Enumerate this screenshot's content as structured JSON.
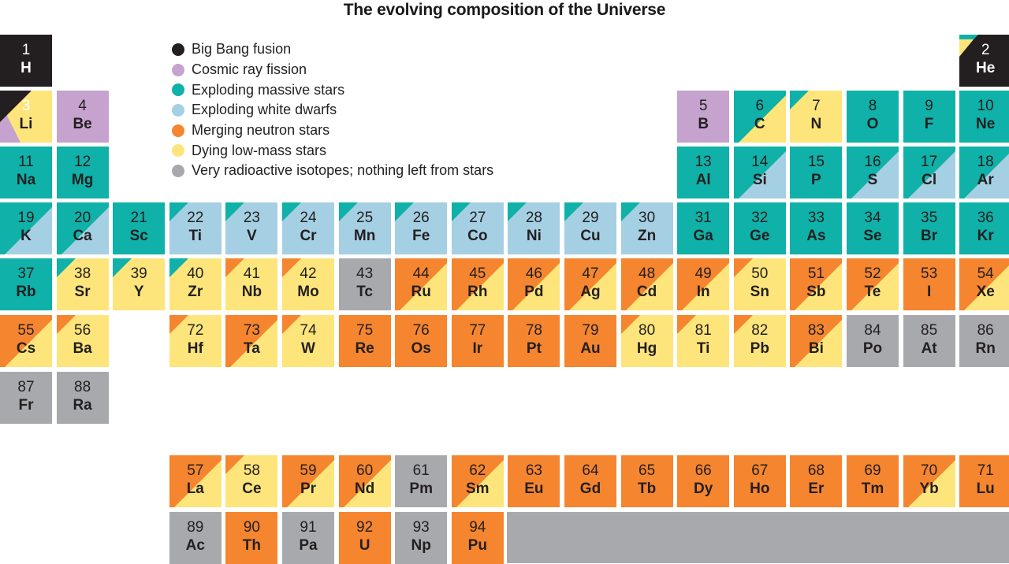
{
  "title": "The evolving composition of the Universe",
  "colors": {
    "bb": "#231f20",
    "cr": "#c5a3ce",
    "ems": "#0fb1a8",
    "ewd": "#a5cfe3",
    "mns": "#f5852f",
    "dlm": "#fde57b",
    "vri": "#a7a9ac"
  },
  "legend": [
    {
      "key": "bb",
      "label": "Big Bang fusion"
    },
    {
      "key": "cr",
      "label": "Cosmic ray fission"
    },
    {
      "key": "ems",
      "label": "Exploding massive stars"
    },
    {
      "key": "ewd",
      "label": "Exploding white dwarfs"
    },
    {
      "key": "mns",
      "label": "Merging neutron stars"
    },
    {
      "key": "dlm",
      "label": "Dying low-mass stars"
    },
    {
      "key": "vri",
      "label": "Very  radioactive isotopes; nothing left from stars"
    }
  ],
  "elements": [
    {
      "n": "1",
      "s": "H",
      "row": 1,
      "col": 1,
      "fill": "bb"
    },
    {
      "n": "2",
      "s": "He",
      "row": 1,
      "col": 18,
      "fill": "bb",
      "corner": "ems",
      "corner2": "dlm"
    },
    {
      "n": "3",
      "s": "Li",
      "row": 2,
      "col": 1,
      "fill": "dlm",
      "corner": "bb",
      "bl": "cr"
    },
    {
      "n": "4",
      "s": "Be",
      "row": 2,
      "col": 2,
      "fill": "cr"
    },
    {
      "n": "5",
      "s": "B",
      "row": 2,
      "col": 13,
      "fill": "cr"
    },
    {
      "n": "6",
      "s": "C",
      "row": 2,
      "col": 14,
      "fill": "ems",
      "br": "dlm"
    },
    {
      "n": "7",
      "s": "N",
      "row": 2,
      "col": 15,
      "fill": "dlm",
      "corner": "ems"
    },
    {
      "n": "8",
      "s": "O",
      "row": 2,
      "col": 16,
      "fill": "ems"
    },
    {
      "n": "9",
      "s": "F",
      "row": 2,
      "col": 17,
      "fill": "ems"
    },
    {
      "n": "10",
      "s": "Ne",
      "row": 2,
      "col": 18,
      "fill": "ems"
    },
    {
      "n": "11",
      "s": "Na",
      "row": 3,
      "col": 1,
      "fill": "ems"
    },
    {
      "n": "12",
      "s": "Mg",
      "row": 3,
      "col": 2,
      "fill": "ems"
    },
    {
      "n": "13",
      "s": "Al",
      "row": 3,
      "col": 13,
      "fill": "ems"
    },
    {
      "n": "14",
      "s": "Si",
      "row": 3,
      "col": 14,
      "fill": "ems",
      "br": "ewd"
    },
    {
      "n": "15",
      "s": "P",
      "row": 3,
      "col": 15,
      "fill": "ems"
    },
    {
      "n": "16",
      "s": "S",
      "row": 3,
      "col": 16,
      "fill": "ems",
      "br": "ewd"
    },
    {
      "n": "17",
      "s": "Cl",
      "row": 3,
      "col": 17,
      "fill": "ems",
      "br": "ewd"
    },
    {
      "n": "18",
      "s": "Ar",
      "row": 3,
      "col": 18,
      "fill": "ems",
      "br": "ewd"
    },
    {
      "n": "19",
      "s": "K",
      "row": 4,
      "col": 1,
      "fill": "ems",
      "br": "ewd"
    },
    {
      "n": "20",
      "s": "Ca",
      "row": 4,
      "col": 2,
      "fill": "ems",
      "br": "ewd"
    },
    {
      "n": "21",
      "s": "Sc",
      "row": 4,
      "col": 3,
      "fill": "ems"
    },
    {
      "n": "22",
      "s": "Ti",
      "row": 4,
      "col": 4,
      "fill": "ewd",
      "corner": "ems"
    },
    {
      "n": "23",
      "s": "V",
      "row": 4,
      "col": 5,
      "fill": "ewd",
      "corner": "ems"
    },
    {
      "n": "24",
      "s": "Cr",
      "row": 4,
      "col": 6,
      "fill": "ewd",
      "corner": "ems"
    },
    {
      "n": "25",
      "s": "Mn",
      "row": 4,
      "col": 7,
      "fill": "ewd",
      "corner": "ems"
    },
    {
      "n": "26",
      "s": "Fe",
      "row": 4,
      "col": 8,
      "fill": "ewd",
      "corner": "ems"
    },
    {
      "n": "27",
      "s": "Co",
      "row": 4,
      "col": 9,
      "fill": "ewd",
      "corner": "ems"
    },
    {
      "n": "28",
      "s": "Ni",
      "row": 4,
      "col": 10,
      "fill": "ewd",
      "corner": "ems"
    },
    {
      "n": "29",
      "s": "Cu",
      "row": 4,
      "col": 11,
      "fill": "ewd",
      "corner": "ems"
    },
    {
      "n": "30",
      "s": "Zn",
      "row": 4,
      "col": 12,
      "fill": "ewd",
      "corner": "ems"
    },
    {
      "n": "31",
      "s": "Ga",
      "row": 4,
      "col": 13,
      "fill": "ems"
    },
    {
      "n": "32",
      "s": "Ge",
      "row": 4,
      "col": 14,
      "fill": "ems"
    },
    {
      "n": "33",
      "s": "As",
      "row": 4,
      "col": 15,
      "fill": "ems"
    },
    {
      "n": "34",
      "s": "Se",
      "row": 4,
      "col": 16,
      "fill": "ems"
    },
    {
      "n": "35",
      "s": "Br",
      "row": 4,
      "col": 17,
      "fill": "ems"
    },
    {
      "n": "36",
      "s": "Kr",
      "row": 4,
      "col": 18,
      "fill": "ems"
    },
    {
      "n": "37",
      "s": "Rb",
      "row": 5,
      "col": 1,
      "fill": "ems"
    },
    {
      "n": "38",
      "s": "Sr",
      "row": 5,
      "col": 2,
      "fill": "dlm",
      "corner": "ems"
    },
    {
      "n": "39",
      "s": "Y",
      "row": 5,
      "col": 3,
      "fill": "dlm",
      "corner": "ems"
    },
    {
      "n": "40",
      "s": "Zr",
      "row": 5,
      "col": 4,
      "fill": "dlm",
      "corner": "ems"
    },
    {
      "n": "41",
      "s": "Nb",
      "row": 5,
      "col": 5,
      "fill": "dlm",
      "corner": "mns"
    },
    {
      "n": "42",
      "s": "Mo",
      "row": 5,
      "col": 6,
      "fill": "dlm",
      "corner": "mns"
    },
    {
      "n": "43",
      "s": "Tc",
      "row": 5,
      "col": 7,
      "fill": "vri"
    },
    {
      "n": "44",
      "s": "Ru",
      "row": 5,
      "col": 8,
      "fill": "mns",
      "br": "dlm"
    },
    {
      "n": "45",
      "s": "Rh",
      "row": 5,
      "col": 9,
      "fill": "mns",
      "br": "dlm"
    },
    {
      "n": "46",
      "s": "Pd",
      "row": 5,
      "col": 10,
      "fill": "mns",
      "br": "dlm"
    },
    {
      "n": "47",
      "s": "Ag",
      "row": 5,
      "col": 11,
      "fill": "mns",
      "br": "dlm"
    },
    {
      "n": "48",
      "s": "Cd",
      "row": 5,
      "col": 12,
      "fill": "mns",
      "br": "dlm"
    },
    {
      "n": "49",
      "s": "In",
      "row": 5,
      "col": 13,
      "fill": "mns",
      "br": "dlm"
    },
    {
      "n": "50",
      "s": "Sn",
      "row": 5,
      "col": 14,
      "fill": "dlm",
      "corner": "mns"
    },
    {
      "n": "51",
      "s": "Sb",
      "row": 5,
      "col": 15,
      "fill": "mns",
      "br": "dlm"
    },
    {
      "n": "52",
      "s": "Te",
      "row": 5,
      "col": 16,
      "fill": "mns",
      "br": "dlm"
    },
    {
      "n": "53",
      "s": "I",
      "row": 5,
      "col": 17,
      "fill": "mns"
    },
    {
      "n": "54",
      "s": "Xe",
      "row": 5,
      "col": 18,
      "fill": "mns",
      "br": "dlm"
    },
    {
      "n": "55",
      "s": "Cs",
      "row": 6,
      "col": 1,
      "fill": "mns",
      "br": "dlm"
    },
    {
      "n": "56",
      "s": "Ba",
      "row": 6,
      "col": 2,
      "fill": "dlm",
      "corner": "mns"
    },
    {
      "n": "72",
      "s": "Hf",
      "row": 6,
      "col": 4,
      "fill": "dlm",
      "corner": "mns"
    },
    {
      "n": "73",
      "s": "Ta",
      "row": 6,
      "col": 5,
      "fill": "mns",
      "br": "dlm"
    },
    {
      "n": "74",
      "s": "W",
      "row": 6,
      "col": 6,
      "fill": "dlm",
      "corner": "mns"
    },
    {
      "n": "75",
      "s": "Re",
      "row": 6,
      "col": 7,
      "fill": "mns"
    },
    {
      "n": "76",
      "s": "Os",
      "row": 6,
      "col": 8,
      "fill": "mns"
    },
    {
      "n": "77",
      "s": "Ir",
      "row": 6,
      "col": 9,
      "fill": "mns"
    },
    {
      "n": "78",
      "s": "Pt",
      "row": 6,
      "col": 10,
      "fill": "mns"
    },
    {
      "n": "79",
      "s": "Au",
      "row": 6,
      "col": 11,
      "fill": "mns"
    },
    {
      "n": "80",
      "s": "Hg",
      "row": 6,
      "col": 12,
      "fill": "dlm",
      "corner": "mns"
    },
    {
      "n": "81",
      "s": "Ti",
      "row": 6,
      "col": 13,
      "fill": "dlm",
      "corner": "mns"
    },
    {
      "n": "82",
      "s": "Pb",
      "row": 6,
      "col": 14,
      "fill": "dlm",
      "corner": "mns"
    },
    {
      "n": "83",
      "s": "Bi",
      "row": 6,
      "col": 15,
      "fill": "mns",
      "br": "dlm"
    },
    {
      "n": "84",
      "s": "Po",
      "row": 6,
      "col": 16,
      "fill": "vri"
    },
    {
      "n": "85",
      "s": "At",
      "row": 6,
      "col": 17,
      "fill": "vri"
    },
    {
      "n": "86",
      "s": "Rn",
      "row": 6,
      "col": 18,
      "fill": "vri"
    },
    {
      "n": "87",
      "s": "Fr",
      "row": 7,
      "col": 1,
      "fill": "vri"
    },
    {
      "n": "88",
      "s": "Ra",
      "row": 7,
      "col": 2,
      "fill": "vri"
    },
    {
      "n": "57",
      "s": "La",
      "row": 9,
      "col": 4,
      "fill": "mns",
      "br": "dlm"
    },
    {
      "n": "58",
      "s": "Ce",
      "row": 9,
      "col": 5,
      "fill": "dlm",
      "corner": "mns"
    },
    {
      "n": "59",
      "s": "Pr",
      "row": 9,
      "col": 6,
      "fill": "mns",
      "br": "dlm"
    },
    {
      "n": "60",
      "s": "Nd",
      "row": 9,
      "col": 7,
      "fill": "mns",
      "br": "dlm"
    },
    {
      "n": "61",
      "s": "Pm",
      "row": 9,
      "col": 8,
      "fill": "vri"
    },
    {
      "n": "62",
      "s": "Sm",
      "row": 9,
      "col": 9,
      "fill": "mns",
      "br": "dlm"
    },
    {
      "n": "63",
      "s": "Eu",
      "row": 9,
      "col": 10,
      "fill": "mns"
    },
    {
      "n": "64",
      "s": "Gd",
      "row": 9,
      "col": 11,
      "fill": "mns"
    },
    {
      "n": "65",
      "s": "Tb",
      "row": 9,
      "col": 12,
      "fill": "mns"
    },
    {
      "n": "66",
      "s": "Dy",
      "row": 9,
      "col": 13,
      "fill": "mns"
    },
    {
      "n": "67",
      "s": "Ho",
      "row": 9,
      "col": 14,
      "fill": "mns"
    },
    {
      "n": "68",
      "s": "Er",
      "row": 9,
      "col": 15,
      "fill": "mns"
    },
    {
      "n": "69",
      "s": "Tm",
      "row": 9,
      "col": 16,
      "fill": "mns"
    },
    {
      "n": "70",
      "s": "Yb",
      "row": 9,
      "col": 17,
      "fill": "mns",
      "br": "dlm"
    },
    {
      "n": "71",
      "s": "Lu",
      "row": 9,
      "col": 18,
      "fill": "mns"
    },
    {
      "n": "89",
      "s": "Ac",
      "row": 10,
      "col": 4,
      "fill": "vri"
    },
    {
      "n": "90",
      "s": "Th",
      "row": 10,
      "col": 5,
      "fill": "mns"
    },
    {
      "n": "91",
      "s": "Pa",
      "row": 10,
      "col": 6,
      "fill": "vri"
    },
    {
      "n": "92",
      "s": "U",
      "row": 10,
      "col": 7,
      "fill": "mns"
    },
    {
      "n": "93",
      "s": "Np",
      "row": 10,
      "col": 8,
      "fill": "vri"
    },
    {
      "n": "94",
      "s": "Pu",
      "row": 10,
      "col": 9,
      "fill": "mns"
    }
  ]
}
